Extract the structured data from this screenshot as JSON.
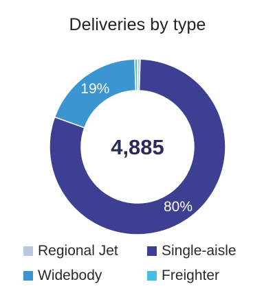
{
  "chart_data": {
    "type": "pie",
    "title": "Deliveries by type",
    "center_label": "4,885",
    "series": [
      {
        "name": "Regional Jet",
        "value": 0.5,
        "color": "#b7c9df"
      },
      {
        "name": "Single-aisle",
        "value": 80,
        "color": "#3d3f92",
        "label": "80%"
      },
      {
        "name": "Widebody",
        "value": 19,
        "color": "#3a95d0",
        "label": "19%"
      },
      {
        "name": "Freighter",
        "value": 0.5,
        "color": "#45bde4"
      }
    ],
    "legend_position": "bottom"
  }
}
